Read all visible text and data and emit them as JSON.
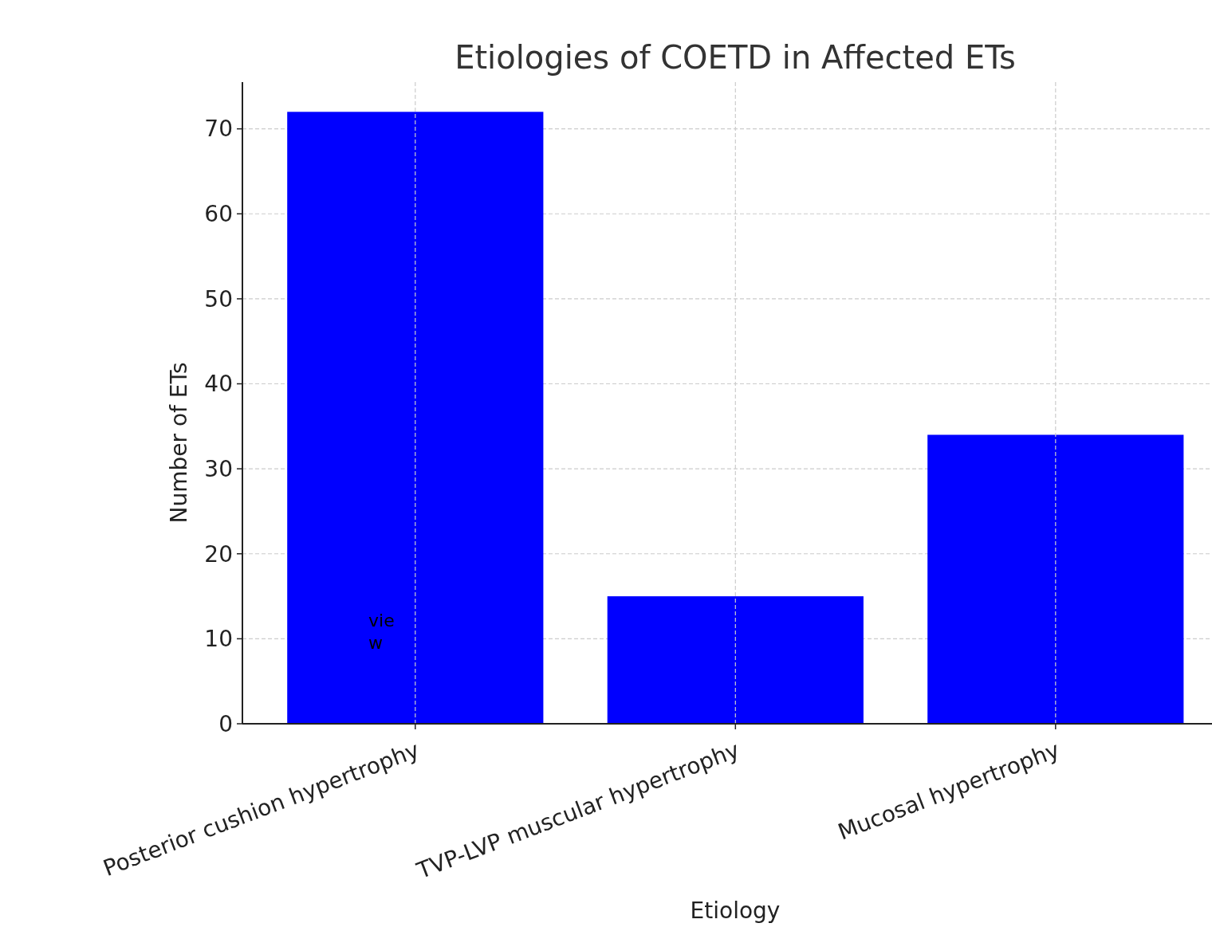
{
  "chart_data": {
    "type": "bar",
    "title": "Etiologies of COETD in Affected ETs",
    "xlabel": "Etiology",
    "ylabel": "Number of ETs",
    "categories": [
      "Posterior cushion hypertrophy",
      "TVP-LVP muscular hypertrophy",
      "Mucosal hypertrophy"
    ],
    "values": [
      72,
      15,
      34
    ],
    "color": "#0000ff",
    "ylim": [
      0,
      75.5
    ],
    "yticks": [
      0,
      10,
      20,
      30,
      40,
      50,
      60,
      70
    ],
    "grid": true,
    "annotations": [
      "vie\nw"
    ]
  }
}
